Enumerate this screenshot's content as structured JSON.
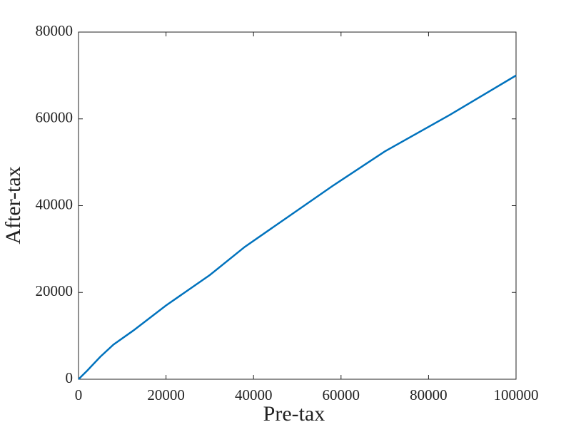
{
  "chart_data": {
    "type": "line",
    "x_label": "Pre-tax",
    "y_label": "After-tax",
    "x": [
      0,
      2000,
      5000,
      8000,
      12500,
      20000,
      30000,
      38000,
      48000,
      58000,
      70000,
      85000,
      100000
    ],
    "series": [
      {
        "name": "After-tax",
        "color": "#0072bd",
        "values": [
          0,
          2000,
          5200,
          8000,
          11200,
          17000,
          24000,
          30500,
          37500,
          44500,
          52500,
          61000,
          70000
        ]
      }
    ],
    "xlim": [
      0,
      100000
    ],
    "xticks": [
      0,
      20000,
      40000,
      60000,
      80000,
      100000
    ],
    "ylim": [
      0,
      80000
    ],
    "yticks": [
      0,
      20000,
      40000,
      60000,
      80000
    ]
  }
}
